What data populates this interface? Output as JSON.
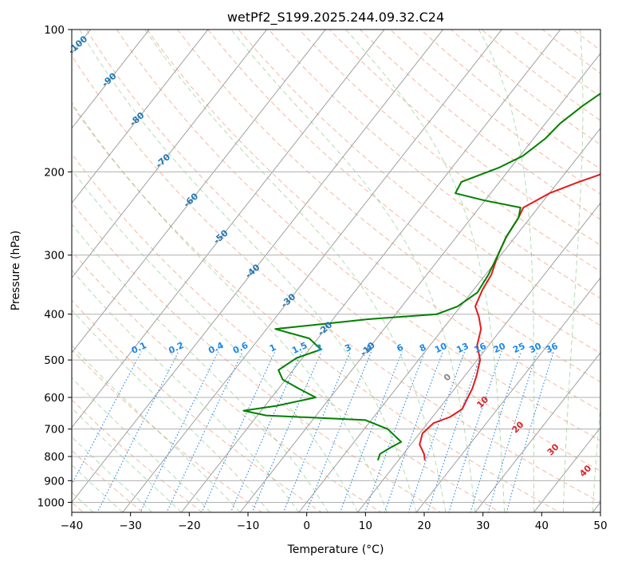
{
  "chart_data": {
    "type": "line",
    "title": "wetPf2_S199.2025.244.09.32.C24",
    "xlabel": "Temperature (°C)",
    "ylabel": "Pressure (hPa)",
    "xlim": [
      -40,
      50
    ],
    "ylim": [
      1050,
      100
    ],
    "y_scale": "log",
    "grid": true,
    "x_ticks": [
      -40,
      -30,
      -20,
      -10,
      0,
      10,
      20,
      30,
      40,
      50
    ],
    "y_ticks": [
      100,
      200,
      300,
      400,
      500,
      600,
      700,
      800,
      900,
      1000
    ],
    "x_tick_labels": [
      "−40",
      "−30",
      "−20",
      "−10",
      "0",
      "10",
      "20",
      "30",
      "40",
      "50"
    ],
    "y_tick_labels": [
      "100",
      "200",
      "300",
      "400",
      "500",
      "600",
      "700",
      "800",
      "900",
      "1000"
    ],
    "series": [
      {
        "color": "#e41a1c",
        "points": [
          [
            14.5,
            815
          ],
          [
            13.5,
            790
          ],
          [
            11.5,
            755
          ],
          [
            10.5,
            715
          ],
          [
            11.0,
            680
          ],
          [
            13.0,
            660
          ],
          [
            14.0,
            635
          ],
          [
            13.5,
            605
          ],
          [
            13.0,
            575
          ],
          [
            12.0,
            540
          ],
          [
            10.5,
            500
          ],
          [
            8.0,
            465
          ],
          [
            6.5,
            430
          ],
          [
            4.5,
            405
          ],
          [
            2.5,
            385
          ],
          [
            1.5,
            355
          ],
          [
            1.0,
            330
          ],
          [
            -0.5,
            300
          ],
          [
            -1.5,
            275
          ],
          [
            -2.0,
            250
          ],
          [
            -2.5,
            238
          ],
          [
            0.0,
            222
          ],
          [
            3.5,
            210
          ],
          [
            6.0,
            203
          ],
          [
            7.0,
            195
          ],
          [
            7.5,
            180
          ],
          [
            8.5,
            165
          ],
          [
            9.0,
            150
          ],
          [
            9.0,
            140
          ],
          [
            9.5,
            132
          ],
          [
            11.5,
            126
          ],
          [
            13.0,
            121
          ],
          [
            14.5,
            116
          ],
          [
            16.0,
            110
          ],
          [
            16.5,
            105
          ],
          [
            17.5,
            100
          ]
        ]
      },
      {
        "color": "#008000",
        "points": [
          [
            6.5,
            815
          ],
          [
            6.0,
            790
          ],
          [
            7.0,
            765
          ],
          [
            8.0,
            745
          ],
          [
            4.0,
            700
          ],
          [
            -1.0,
            670
          ],
          [
            -18.5,
            655
          ],
          [
            -23.0,
            640
          ],
          [
            -18.0,
            625
          ],
          [
            -12.5,
            600
          ],
          [
            -16.5,
            575
          ],
          [
            -20.5,
            550
          ],
          [
            -22.5,
            525
          ],
          [
            -21.0,
            495
          ],
          [
            -18.0,
            475
          ],
          [
            -21.5,
            450
          ],
          [
            -28.5,
            430
          ],
          [
            -14.0,
            410
          ],
          [
            -3.0,
            400
          ],
          [
            -0.5,
            385
          ],
          [
            1.0,
            360
          ],
          [
            0.5,
            330
          ],
          [
            -0.5,
            300
          ],
          [
            -1.5,
            275
          ],
          [
            -2.0,
            250
          ],
          [
            -3.0,
            238
          ],
          [
            -10.0,
            230
          ],
          [
            -16.0,
            222
          ],
          [
            -16.5,
            210
          ],
          [
            -12.0,
            196
          ],
          [
            -9.5,
            185
          ],
          [
            -8.0,
            170
          ],
          [
            -7.5,
            158
          ],
          [
            -6.0,
            145
          ],
          [
            -3.5,
            130
          ],
          [
            -2.5,
            120
          ],
          [
            -1.0,
            110
          ],
          [
            0.5,
            105
          ],
          [
            1.0,
            100
          ]
        ]
      }
    ],
    "isotherm_labels": {
      "color": "#1f77b4",
      "values": [
        "-100",
        "-90",
        "-80",
        "-70",
        "-60",
        "-50",
        "-40",
        "-30",
        "-20",
        "-10"
      ]
    },
    "mixing_ratio_labels": {
      "color": "#1e88e5",
      "values": [
        "0.1",
        "0.2",
        "0.4",
        "0.6",
        "1",
        "1.5",
        "2",
        "3",
        "4",
        "6",
        "8",
        "10",
        "13",
        "16",
        "20",
        "25",
        "30",
        "36"
      ]
    },
    "moist_adiabat_labels": {
      "color": "#d62728",
      "values": [
        "0",
        "10",
        "20",
        "30",
        "40"
      ]
    }
  }
}
